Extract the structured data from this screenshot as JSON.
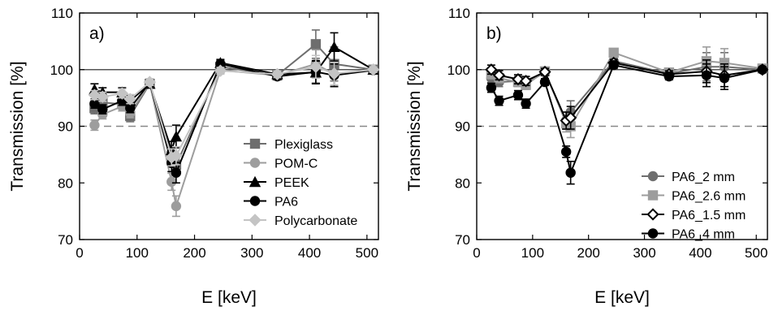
{
  "colors": {
    "dark_gray": "#6e6e6e",
    "light_gray": "#9d9d9d",
    "black": "#000000",
    "very_light_gray": "#c4c4c4",
    "ref_line": "#555555",
    "dash_line": "#888888"
  },
  "chart_data": [
    {
      "panel_label": "a)",
      "type": "line",
      "xlabel": "E [keV]",
      "ylabel": "Transmission [%]",
      "xlim": [
        0,
        520
      ],
      "ylim": [
        70,
        110
      ],
      "xticks": [
        0,
        100,
        200,
        300,
        400,
        500
      ],
      "yticks": [
        70,
        80,
        90,
        100,
        110
      ],
      "reference_lines": [
        {
          "y": 100,
          "style": "solid"
        },
        {
          "y": 90,
          "style": "dashed"
        }
      ],
      "legend_position": "lower-right",
      "grid": false,
      "series": [
        {
          "name": "Plexiglass",
          "marker": "square",
          "color": "#6e6e6e",
          "points": [
            [
              26,
              93.2,
              1.0
            ],
            [
              40,
              94.2,
              0.8
            ],
            [
              74,
              93.9,
              0.8
            ],
            [
              88,
              91.8,
              1.0
            ],
            [
              122,
              97.5,
              0.6
            ],
            [
              160,
              84.8,
              1.5
            ],
            [
              168,
              83.2,
              1.6
            ],
            [
              245,
              100.5,
              0.6
            ],
            [
              344,
              99.0,
              0.6
            ],
            [
              411,
              104.5,
              2.5
            ],
            [
              443,
              101.0,
              3.0
            ],
            [
              511,
              100.0,
              0.5
            ]
          ]
        },
        {
          "name": "POM-C",
          "marker": "circle",
          "color": "#9d9d9d",
          "points": [
            [
              26,
              90.2,
              0.9
            ],
            [
              40,
              92.1,
              0.8
            ],
            [
              74,
              93.5,
              0.8
            ],
            [
              88,
              92.3,
              0.8
            ],
            [
              122,
              97.6,
              0.6
            ],
            [
              160,
              80.2,
              1.5
            ],
            [
              168,
              75.9,
              1.8
            ],
            [
              245,
              99.9,
              0.6
            ],
            [
              344,
              99.0,
              0.6
            ],
            [
              411,
              101.0,
              2.5
            ],
            [
              443,
              99.2,
              2.0
            ],
            [
              511,
              100.0,
              0.5
            ]
          ]
        },
        {
          "name": "PEEK",
          "marker": "triangle",
          "color": "#000000",
          "points": [
            [
              26,
              96.5,
              1.0
            ],
            [
              40,
              96.0,
              0.8
            ],
            [
              74,
              96.0,
              0.8
            ],
            [
              88,
              94.5,
              1.0
            ],
            [
              122,
              97.5,
              0.6
            ],
            [
              160,
              85.8,
              1.5
            ],
            [
              168,
              88.2,
              2.0
            ],
            [
              245,
              101.2,
              0.6
            ],
            [
              344,
              99.2,
              0.6
            ],
            [
              411,
              99.5,
              2.0
            ],
            [
              443,
              104.0,
              2.5
            ],
            [
              511,
              100.0,
              0.5
            ]
          ]
        },
        {
          "name": "PA6",
          "marker": "circle",
          "color": "#000000",
          "points": [
            [
              26,
              94.0,
              0.8
            ],
            [
              40,
              93.0,
              0.8
            ],
            [
              74,
              94.5,
              0.8
            ],
            [
              88,
              93.2,
              0.8
            ],
            [
              122,
              97.7,
              0.6
            ],
            [
              160,
              83.5,
              1.5
            ],
            [
              168,
              81.8,
              1.8
            ],
            [
              245,
              101.0,
              0.6
            ],
            [
              344,
              98.8,
              0.6
            ],
            [
              411,
              99.6,
              2.0
            ],
            [
              443,
              99.0,
              2.0
            ],
            [
              511,
              99.9,
              0.5
            ]
          ]
        },
        {
          "name": "Polycarbonate",
          "marker": "diamond",
          "color": "#c4c4c4",
          "points": [
            [
              26,
              95.5,
              0.8
            ],
            [
              40,
              95.2,
              0.8
            ],
            [
              74,
              95.8,
              0.8
            ],
            [
              88,
              94.8,
              0.8
            ],
            [
              122,
              97.8,
              0.6
            ],
            [
              160,
              84.5,
              1.5
            ],
            [
              168,
              84.8,
              1.6
            ],
            [
              245,
              99.8,
              0.6
            ],
            [
              344,
              99.2,
              0.6
            ],
            [
              411,
              100.5,
              2.0
            ],
            [
              443,
              99.3,
              2.0
            ],
            [
              511,
              100.0,
              0.5
            ]
          ]
        }
      ]
    },
    {
      "panel_label": "b)",
      "type": "line",
      "xlabel": "E [keV]",
      "ylabel": "Transmission [%]",
      "xlim": [
        0,
        520
      ],
      "ylim": [
        70,
        110
      ],
      "xticks": [
        0,
        100,
        200,
        300,
        400,
        500
      ],
      "yticks": [
        70,
        80,
        90,
        100,
        110
      ],
      "reference_lines": [
        {
          "y": 100,
          "style": "solid"
        },
        {
          "y": 90,
          "style": "dashed"
        }
      ],
      "legend_position": "lower-right",
      "grid": false,
      "series": [
        {
          "name": "PA6_2 mm",
          "marker": "circle",
          "color": "#6e6e6e",
          "points": [
            [
              26,
              98.5,
              0.8
            ],
            [
              40,
              97.8,
              0.8
            ],
            [
              74,
              98.0,
              0.8
            ],
            [
              88,
              97.6,
              0.8
            ],
            [
              122,
              99.5,
              0.6
            ],
            [
              160,
              91.0,
              1.5
            ],
            [
              168,
              92.5,
              2.0
            ],
            [
              245,
              101.5,
              0.6
            ],
            [
              344,
              99.3,
              0.6
            ],
            [
              411,
              100.5,
              2.5
            ],
            [
              443,
              100.5,
              2.5
            ],
            [
              511,
              100.0,
              0.5
            ]
          ]
        },
        {
          "name": "PA6_2.6 mm",
          "marker": "square",
          "color": "#9d9d9d",
          "points": [
            [
              26,
              99.2,
              0.8
            ],
            [
              40,
              98.5,
              0.8
            ],
            [
              74,
              97.8,
              0.8
            ],
            [
              88,
              97.3,
              0.8
            ],
            [
              122,
              99.7,
              0.6
            ],
            [
              160,
              90.5,
              1.5
            ],
            [
              168,
              90.0,
              2.0
            ],
            [
              245,
              103.0,
              0.6
            ],
            [
              344,
              99.5,
              0.6
            ],
            [
              411,
              101.5,
              2.5
            ],
            [
              443,
              101.2,
              2.5
            ],
            [
              511,
              100.2,
              0.5
            ]
          ]
        },
        {
          "name": "PA6_1.5 mm",
          "marker": "diamond-open",
          "color": "#000000",
          "points": [
            [
              26,
              100.0,
              0.8
            ],
            [
              40,
              99.0,
              0.8
            ],
            [
              74,
              98.3,
              0.8
            ],
            [
              88,
              98.0,
              0.8
            ],
            [
              122,
              99.6,
              0.6
            ],
            [
              160,
              91.0,
              1.5
            ],
            [
              168,
              91.5,
              2.0
            ],
            [
              245,
              101.2,
              0.6
            ],
            [
              344,
              99.2,
              0.6
            ],
            [
              411,
              99.7,
              2.0
            ],
            [
              443,
              99.0,
              2.0
            ],
            [
              511,
              100.0,
              0.5
            ]
          ]
        },
        {
          "name": "PA6_4 mm",
          "marker": "circle",
          "color": "#000000",
          "points": [
            [
              26,
              96.8,
              0.8
            ],
            [
              40,
              94.5,
              0.8
            ],
            [
              74,
              95.5,
              0.8
            ],
            [
              88,
              94.0,
              0.8
            ],
            [
              122,
              97.8,
              0.6
            ],
            [
              160,
              85.5,
              1.0
            ],
            [
              168,
              81.8,
              2.0
            ],
            [
              245,
              100.8,
              0.6
            ],
            [
              344,
              98.8,
              0.6
            ],
            [
              411,
              99.0,
              2.0
            ],
            [
              443,
              98.5,
              2.0
            ],
            [
              511,
              100.0,
              0.5
            ]
          ]
        }
      ]
    }
  ]
}
